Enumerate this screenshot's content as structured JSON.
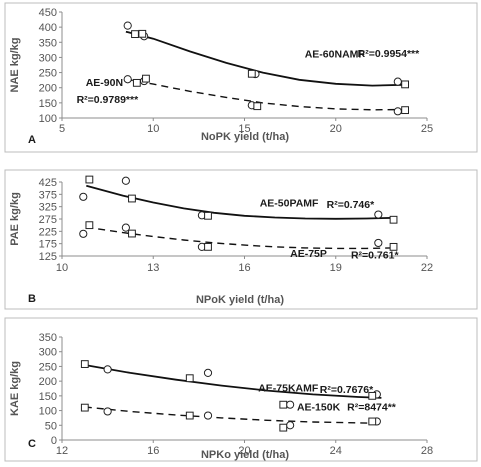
{
  "chart_data": [
    {
      "type": "scatter",
      "panel_label": "A",
      "xlabel": "NoPK yield (t/ha)",
      "ylabel": "NAE kg/kg",
      "xlim": [
        5,
        25
      ],
      "ylim": [
        100,
        450
      ],
      "xticks": [
        "5",
        "10",
        "15",
        "20",
        "25"
      ],
      "yticks": [
        "100",
        "150",
        "200",
        "250",
        "300",
        "350",
        "400",
        "450"
      ],
      "series": [
        {
          "marker": "circle",
          "line": "solid",
          "points": [
            [
              8.6,
              405
            ],
            [
              9.5,
              370
            ],
            [
              15.6,
              245
            ],
            [
              23.4,
              220
            ],
            [
              8.6,
              228
            ],
            [
              9.5,
              222
            ],
            [
              15.4,
              142
            ],
            [
              23.4,
              122
            ]
          ]
        },
        {
          "marker": "square",
          "line": "dashed",
          "points": [
            [
              9.0,
              377
            ],
            [
              9.4,
              378
            ],
            [
              15.4,
              246
            ],
            [
              23.8,
              211
            ],
            [
              9.1,
              216
            ],
            [
              9.6,
              230
            ],
            [
              15.7,
              139
            ],
            [
              23.8,
              126
            ]
          ]
        }
      ],
      "trendlines": [
        {
          "style": "solid",
          "points": [
            [
              8.5,
              385
            ],
            [
              10,
              362
            ],
            [
              12,
              320
            ],
            [
              14,
              282
            ],
            [
              16,
              250
            ],
            [
              18,
              226
            ],
            [
              20,
              213
            ],
            [
              22,
              207
            ],
            [
              24,
              210
            ]
          ]
        },
        {
          "style": "dashed",
          "points": [
            [
              8.5,
              228
            ],
            [
              10,
              212
            ],
            [
              12,
              188
            ],
            [
              14,
              168
            ],
            [
              16,
              150
            ],
            [
              18,
              138
            ],
            [
              20,
              130
            ],
            [
              22,
              127
            ],
            [
              24,
              128
            ]
          ]
        }
      ],
      "annotations": [
        {
          "text": "AE-60NAMF",
          "x": 18.3,
          "y": 300
        },
        {
          "text": "R²=0.9954***",
          "x": 21.2,
          "y": 302
        },
        {
          "text": "AE-90N",
          "x": 6.3,
          "y": 205
        },
        {
          "text": "R²=0.9789***",
          "x": 5.8,
          "y": 150
        }
      ]
    },
    {
      "type": "scatter",
      "panel_label": "B",
      "xlabel": "NPoK yield (t/ha)",
      "ylabel": "PAE kg/kg",
      "xlim": [
        10,
        22
      ],
      "ylim": [
        125,
        425
      ],
      "xticks": [
        "10",
        "13",
        "16",
        "19",
        "22"
      ],
      "yticks": [
        "125",
        "175",
        "225",
        "275",
        "325",
        "375",
        "425"
      ],
      "series": [
        {
          "marker": "circle",
          "line": "solid",
          "points": [
            [
              10.7,
              365
            ],
            [
              12.1,
              430
            ],
            [
              14.6,
              290
            ],
            [
              20.4,
              293
            ],
            [
              10.7,
              215
            ],
            [
              12.1,
              240
            ],
            [
              14.6,
              162
            ],
            [
              20.4,
              178
            ]
          ]
        },
        {
          "marker": "square",
          "line": "dashed",
          "points": [
            [
              10.9,
              435
            ],
            [
              12.3,
              358
            ],
            [
              14.8,
              288
            ],
            [
              20.9,
              272
            ],
            [
              10.9,
              250
            ],
            [
              12.3,
              216
            ],
            [
              14.8,
              162
            ],
            [
              20.9,
              162
            ]
          ]
        }
      ],
      "trendlines": [
        {
          "style": "solid",
          "points": [
            [
              10.8,
              410
            ],
            [
              12,
              370
            ],
            [
              13,
              342
            ],
            [
              14,
              318
            ],
            [
              15,
              300
            ],
            [
              16,
              288
            ],
            [
              17,
              281
            ],
            [
              18,
              277
            ],
            [
              19,
              276
            ],
            [
              20,
              277
            ],
            [
              21,
              280
            ]
          ]
        },
        {
          "style": "dashed",
          "points": [
            [
              10.8,
              242
            ],
            [
              12,
              220
            ],
            [
              13,
              204
            ],
            [
              14,
              190
            ],
            [
              15,
              178
            ],
            [
              16,
              169
            ],
            [
              17,
              162
            ],
            [
              18,
              158
            ],
            [
              19,
              156
            ],
            [
              20,
              156
            ],
            [
              21,
              158
            ]
          ]
        }
      ],
      "annotations": [
        {
          "text": "AE-50PAMF",
          "x": 16.5,
          "y": 325
        },
        {
          "text": "R²=0.746*",
          "x": 18.7,
          "y": 320
        },
        {
          "text": "AE-75P",
          "x": 17.5,
          "y": 120
        },
        {
          "text": "R²=0.761*",
          "x": 19.5,
          "y": 115
        }
      ]
    },
    {
      "type": "scatter",
      "panel_label": "C",
      "xlabel": "NPKo yield (t/ha)",
      "ylabel": "KAE kg/kg",
      "xlim": [
        12,
        28
      ],
      "ylim": [
        0,
        350
      ],
      "xticks": [
        "12",
        "16",
        "20",
        "24",
        "28"
      ],
      "yticks": [
        "0",
        "50",
        "100",
        "150",
        "200",
        "250",
        "300",
        "350"
      ],
      "series": [
        {
          "marker": "circle",
          "line": "solid",
          "points": [
            [
              14.0,
              240
            ],
            [
              18.4,
              228
            ],
            [
              22.0,
              120
            ],
            [
              25.8,
              155
            ],
            [
              14.0,
              97
            ],
            [
              18.4,
              83
            ],
            [
              22.0,
              50
            ],
            [
              25.8,
              63
            ]
          ]
        },
        {
          "marker": "square",
          "line": "dashed",
          "points": [
            [
              13.0,
              258
            ],
            [
              17.6,
              210
            ],
            [
              21.7,
              120
            ],
            [
              25.6,
              150
            ],
            [
              13.0,
              110
            ],
            [
              17.6,
              83
            ],
            [
              21.7,
              42
            ],
            [
              25.6,
              63
            ]
          ]
        }
      ],
      "trendlines": [
        {
          "style": "solid",
          "points": [
            [
              13,
              255
            ],
            [
              15,
              228
            ],
            [
              17,
              205
            ],
            [
              19,
              185
            ],
            [
              21,
              168
            ],
            [
              23,
              155
            ],
            [
              25,
              146
            ],
            [
              26,
              143
            ]
          ]
        },
        {
          "style": "dashed",
          "points": [
            [
              13,
              112
            ],
            [
              15,
              97
            ],
            [
              17,
              85
            ],
            [
              19,
              75
            ],
            [
              21,
              67
            ],
            [
              23,
              61
            ],
            [
              25,
              58
            ],
            [
              26,
              57
            ]
          ]
        }
      ],
      "annotations": [
        {
          "text": "AE-75KAMF",
          "x": 20.6,
          "y": 165
        },
        {
          "text": "R²=0.7676*",
          "x": 23.3,
          "y": 160
        },
        {
          "text": "AE-150K",
          "x": 22.3,
          "y": 100
        },
        {
          "text": "R²=8474**",
          "x": 24.5,
          "y": 100
        }
      ]
    }
  ]
}
